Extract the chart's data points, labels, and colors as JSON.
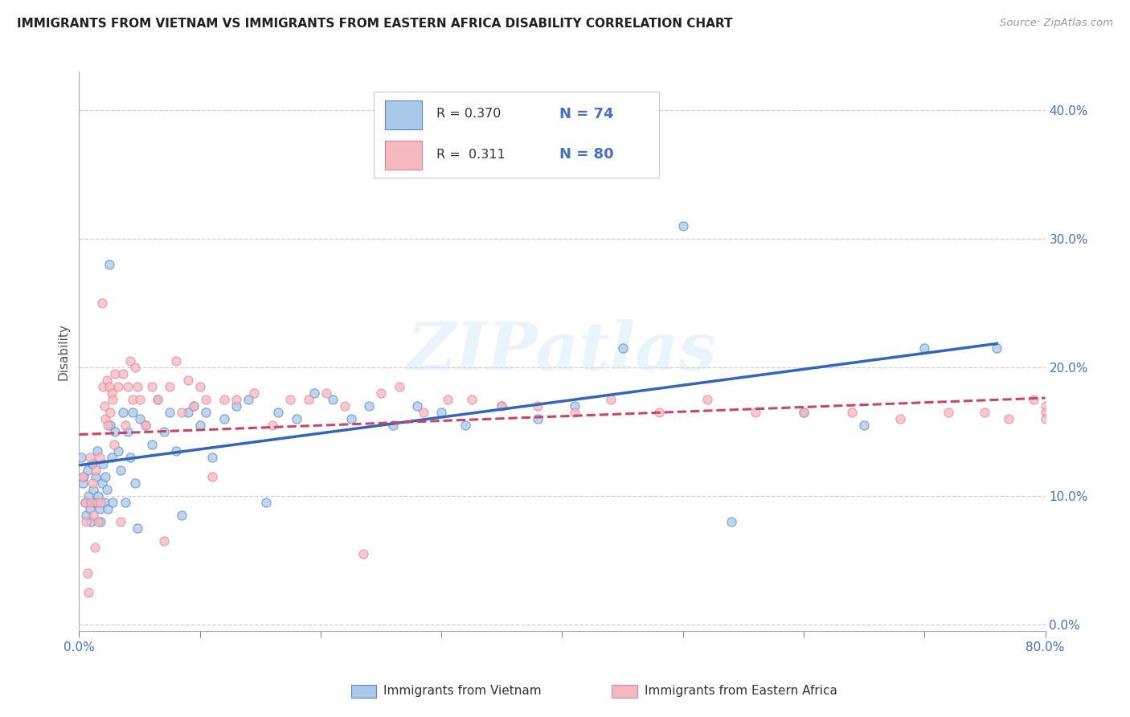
{
  "title": "IMMIGRANTS FROM VIETNAM VS IMMIGRANTS FROM EASTERN AFRICA DISABILITY CORRELATION CHART",
  "source": "Source: ZipAtlas.com",
  "ylabel": "Disability",
  "xlim": [
    0.0,
    0.8
  ],
  "ylim": [
    -0.005,
    0.43
  ],
  "xticks": [
    0.0,
    0.1,
    0.2,
    0.3,
    0.4,
    0.5,
    0.6,
    0.7,
    0.8
  ],
  "xticklabels_sparse": [
    "0.0%",
    "",
    "",
    "",
    "",
    "",
    "",
    "",
    "80.0%"
  ],
  "yticks": [
    0.0,
    0.1,
    0.2,
    0.3,
    0.4
  ],
  "yticklabels_right": [
    "0.0%",
    "10.0%",
    "20.0%",
    "30.0%",
    "40.0%"
  ],
  "color_vietnam": "#aac8e8",
  "color_vietnam_edge": "#5588cc",
  "color_vietnam_line": "#3366bb",
  "color_ea": "#f5b8c0",
  "color_ea_edge": "#dd8899",
  "color_ea_line": "#cc4466",
  "R_vietnam": 0.37,
  "N_vietnam": 74,
  "R_ea": 0.311,
  "N_ea": 80,
  "legend_label_vietnam": "Immigrants from Vietnam",
  "legend_label_ea": "Immigrants from Eastern Africa",
  "watermark": "ZIPatlas",
  "vietnam_x": [
    0.002,
    0.003,
    0.004,
    0.005,
    0.006,
    0.007,
    0.008,
    0.009,
    0.01,
    0.011,
    0.012,
    0.013,
    0.014,
    0.015,
    0.016,
    0.017,
    0.018,
    0.019,
    0.02,
    0.021,
    0.022,
    0.023,
    0.024,
    0.025,
    0.026,
    0.027,
    0.028,
    0.03,
    0.032,
    0.034,
    0.036,
    0.038,
    0.04,
    0.042,
    0.044,
    0.046,
    0.048,
    0.05,
    0.055,
    0.06,
    0.065,
    0.07,
    0.075,
    0.08,
    0.085,
    0.09,
    0.095,
    0.1,
    0.105,
    0.11,
    0.12,
    0.13,
    0.14,
    0.155,
    0.165,
    0.18,
    0.195,
    0.21,
    0.225,
    0.24,
    0.26,
    0.28,
    0.3,
    0.32,
    0.35,
    0.38,
    0.41,
    0.45,
    0.5,
    0.54,
    0.6,
    0.65,
    0.7,
    0.76
  ],
  "vietnam_y": [
    0.13,
    0.11,
    0.115,
    0.095,
    0.085,
    0.12,
    0.1,
    0.09,
    0.08,
    0.125,
    0.105,
    0.095,
    0.115,
    0.135,
    0.1,
    0.09,
    0.08,
    0.11,
    0.125,
    0.095,
    0.115,
    0.105,
    0.09,
    0.28,
    0.155,
    0.13,
    0.095,
    0.15,
    0.135,
    0.12,
    0.165,
    0.095,
    0.15,
    0.13,
    0.165,
    0.11,
    0.075,
    0.16,
    0.155,
    0.14,
    0.175,
    0.15,
    0.165,
    0.135,
    0.085,
    0.165,
    0.17,
    0.155,
    0.165,
    0.13,
    0.16,
    0.17,
    0.175,
    0.095,
    0.165,
    0.16,
    0.18,
    0.175,
    0.16,
    0.17,
    0.155,
    0.17,
    0.165,
    0.155,
    0.17,
    0.16,
    0.17,
    0.215,
    0.31,
    0.08,
    0.165,
    0.155,
    0.215,
    0.215
  ],
  "ea_x": [
    0.003,
    0.005,
    0.006,
    0.007,
    0.008,
    0.009,
    0.01,
    0.011,
    0.012,
    0.013,
    0.014,
    0.015,
    0.016,
    0.017,
    0.018,
    0.019,
    0.02,
    0.021,
    0.022,
    0.023,
    0.024,
    0.025,
    0.026,
    0.027,
    0.028,
    0.029,
    0.03,
    0.032,
    0.034,
    0.036,
    0.038,
    0.04,
    0.042,
    0.044,
    0.046,
    0.048,
    0.05,
    0.055,
    0.06,
    0.065,
    0.07,
    0.075,
    0.08,
    0.085,
    0.09,
    0.095,
    0.1,
    0.105,
    0.11,
    0.12,
    0.13,
    0.145,
    0.16,
    0.175,
    0.19,
    0.205,
    0.22,
    0.235,
    0.25,
    0.265,
    0.285,
    0.305,
    0.325,
    0.35,
    0.38,
    0.41,
    0.44,
    0.48,
    0.52,
    0.56,
    0.6,
    0.64,
    0.68,
    0.72,
    0.75,
    0.77,
    0.79,
    0.8,
    0.8,
    0.8
  ],
  "ea_y": [
    0.115,
    0.095,
    0.08,
    0.04,
    0.025,
    0.13,
    0.095,
    0.11,
    0.085,
    0.06,
    0.12,
    0.095,
    0.08,
    0.13,
    0.095,
    0.25,
    0.185,
    0.17,
    0.16,
    0.19,
    0.155,
    0.185,
    0.165,
    0.18,
    0.175,
    0.14,
    0.195,
    0.185,
    0.08,
    0.195,
    0.155,
    0.185,
    0.205,
    0.175,
    0.2,
    0.185,
    0.175,
    0.155,
    0.185,
    0.175,
    0.065,
    0.185,
    0.205,
    0.165,
    0.19,
    0.17,
    0.185,
    0.175,
    0.115,
    0.175,
    0.175,
    0.18,
    0.155,
    0.175,
    0.175,
    0.18,
    0.17,
    0.055,
    0.18,
    0.185,
    0.165,
    0.175,
    0.175,
    0.17,
    0.17,
    0.165,
    0.175,
    0.165,
    0.175,
    0.165,
    0.165,
    0.165,
    0.16,
    0.165,
    0.165,
    0.16,
    0.175,
    0.17,
    0.165,
    0.16
  ]
}
